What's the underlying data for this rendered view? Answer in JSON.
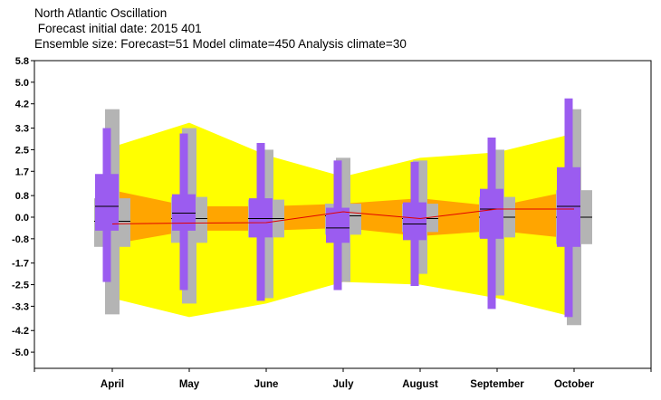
{
  "header": {
    "title": "North Atlantic Oscillation",
    "subtitle": " Forecast initial date: 2015 401",
    "ensemble": "Ensemble size: Forecast=51 Model climate=450 Analysis climate=30"
  },
  "chart_data": {
    "type": "box",
    "title": "North Atlantic Oscillation",
    "categories": [
      "April",
      "May",
      "June",
      "July",
      "August",
      "September",
      "October"
    ],
    "y_ticks": [
      "5.8",
      "5.0",
      "4.2",
      "3.3",
      "2.5",
      "1.7",
      "0.8",
      "0.0",
      "-0.8",
      "-1.7",
      "-2.5",
      "-3.3",
      "-4.2",
      "-5.0"
    ],
    "ylim": [
      -5.6,
      5.8
    ],
    "grid": false,
    "colors": {
      "outer_band": "#ffff00",
      "inner_band": "#ffa500",
      "model_climate_box": "#b4b4b4",
      "forecast_box": "#9b5cf0",
      "analysis_line": "#e00000",
      "median": "#000000"
    },
    "climate_band_outer": {
      "upper": [
        2.6,
        3.5,
        2.3,
        1.5,
        2.2,
        2.4,
        3.1
      ],
      "lower": [
        -3.0,
        -3.7,
        -3.2,
        -2.4,
        -2.5,
        -3.0,
        -3.7
      ]
    },
    "climate_band_inner": {
      "upper": [
        1.0,
        0.4,
        0.4,
        0.5,
        0.7,
        0.4,
        1.0
      ],
      "lower": [
        -1.0,
        -0.5,
        -0.5,
        -0.4,
        -0.7,
        -0.5,
        -0.8
      ]
    },
    "analysis_climate_mean": [
      -0.25,
      -0.22,
      -0.2,
      0.2,
      -0.05,
      0.3,
      0.3
    ],
    "model_climate": [
      {
        "min": -3.6,
        "q1": -1.1,
        "median": -0.15,
        "q3": 0.7,
        "max": 4.0
      },
      {
        "min": -3.2,
        "q1": -0.95,
        "median": -0.05,
        "q3": 0.75,
        "max": 3.3
      },
      {
        "min": -3.0,
        "q1": -0.75,
        "median": -0.05,
        "q3": 0.65,
        "max": 2.5
      },
      {
        "min": -2.4,
        "q1": -0.65,
        "median": 0.05,
        "q3": 0.5,
        "max": 2.2
      },
      {
        "min": -2.1,
        "q1": -0.55,
        "median": -0.05,
        "q3": 0.5,
        "max": 2.1
      },
      {
        "min": -2.9,
        "q1": -0.75,
        "median": 0.0,
        "q3": 0.75,
        "max": 2.5
      },
      {
        "min": -4.0,
        "q1": -1.0,
        "median": 0.0,
        "q3": 1.0,
        "max": 4.0
      }
    ],
    "forecast": [
      {
        "min": -2.4,
        "q1": -0.5,
        "median": 0.4,
        "q3": 1.6,
        "max": 3.3,
        "q05": -1.2,
        "q95": 3.0
      },
      {
        "min": -2.7,
        "q1": -0.5,
        "median": 0.15,
        "q3": 0.85,
        "max": 3.1,
        "q05": -1.8,
        "q95": 2.5
      },
      {
        "min": -3.1,
        "q1": -0.75,
        "median": -0.05,
        "q3": 0.7,
        "max": 2.75,
        "q05": -2.3,
        "q95": 2.3
      },
      {
        "min": -2.7,
        "q1": -0.95,
        "median": -0.4,
        "q3": 0.35,
        "max": 2.1,
        "q05": -2.1,
        "q95": 1.7
      },
      {
        "min": -2.55,
        "q1": -0.85,
        "median": -0.25,
        "q3": 0.55,
        "max": 2.05,
        "q05": -2.0,
        "q95": 1.6
      },
      {
        "min": -3.4,
        "q1": -0.8,
        "median": 0.3,
        "q3": 1.05,
        "max": 2.95,
        "q05": -2.7,
        "q95": 2.5
      },
      {
        "min": -3.7,
        "q1": -1.1,
        "median": 0.4,
        "q3": 1.85,
        "max": 4.4,
        "q05": -3.0,
        "q95": 3.8
      }
    ]
  }
}
